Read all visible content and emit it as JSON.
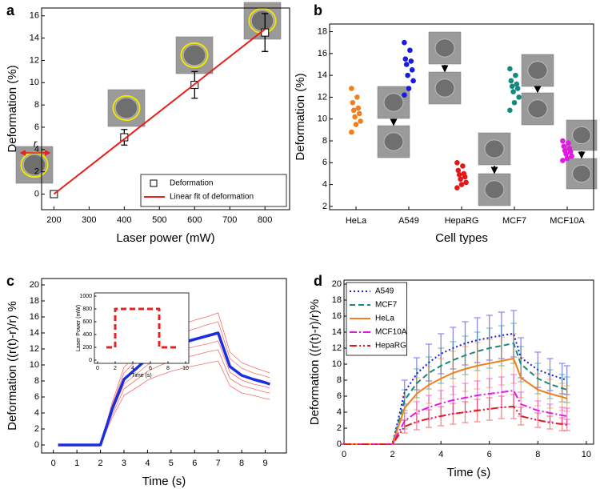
{
  "chart_data": [
    {
      "type": "scatter",
      "panel_label": "a",
      "x_label": "Laser power (mW)",
      "y_label": "Deformation (%)",
      "xlim": [
        165,
        870
      ],
      "ylim": [
        -1.4,
        16.7
      ],
      "xticks": [
        200,
        300,
        400,
        500,
        600,
        700,
        800
      ],
      "yticks": [
        0,
        2,
        4,
        6,
        8,
        10,
        12,
        14,
        16
      ],
      "legend": "lower right",
      "annotation": "r",
      "series": [
        {
          "name": "Deformation",
          "color": "#000000",
          "marker": "square",
          "x": [
            200,
            400,
            600,
            800
          ],
          "values": [
            0,
            5.1,
            9.8,
            14.5
          ],
          "errors": [
            0,
            0.7,
            1.2,
            1.7
          ]
        },
        {
          "name": "Linear fit of deformation",
          "color": "#e8201c",
          "x": [
            200,
            800
          ],
          "values": [
            0,
            14.8
          ]
        }
      ]
    },
    {
      "type": "strip",
      "panel_label": "b",
      "x_label": "Cell types",
      "y_label": "Deformation (%)",
      "categories": [
        "HeLa",
        "A549",
        "HepaRG",
        "MCF7",
        "MCF10A"
      ],
      "ylim": [
        1.7,
        18.7
      ],
      "yticks": [
        2,
        4,
        6,
        8,
        10,
        12,
        14,
        16,
        18
      ],
      "series": [
        {
          "color": "#f07f20",
          "values": [
            12.8,
            12.0,
            11.5,
            11.0,
            10.8,
            10.5,
            10.2,
            9.8,
            9.5,
            8.8
          ]
        },
        {
          "color": "#1a1adc",
          "values": [
            17.0,
            16.3,
            15.5,
            15.3,
            15.0,
            14.5,
            14.0,
            13.5,
            12.8,
            12.2
          ]
        },
        {
          "color": "#e01a1a",
          "values": [
            6.0,
            5.7,
            5.3,
            5.0,
            4.9,
            4.7,
            4.5,
            4.2,
            4.0,
            3.7
          ]
        },
        {
          "color": "#138a80",
          "values": [
            14.6,
            14.0,
            13.5,
            13.2,
            13.0,
            12.8,
            12.5,
            12.0,
            11.5,
            10.8
          ]
        },
        {
          "color": "#e01ae0",
          "values": [
            8.0,
            7.8,
            7.5,
            7.3,
            7.1,
            7.0,
            6.8,
            6.6,
            6.4,
            6.2
          ]
        }
      ]
    },
    {
      "type": "line",
      "panel_label": "c",
      "x_label": "Time (s)",
      "y_label": "Deformation ((r(t)-r)/r) %",
      "x": [
        0.2,
        0.5,
        1,
        1.5,
        2,
        2.5,
        3,
        3.5,
        4,
        4.5,
        5,
        5.5,
        6,
        6.5,
        7,
        7.5,
        8,
        8.5,
        9,
        9.2
      ],
      "xlim": [
        -0.5,
        9.9
      ],
      "ylim": [
        -1,
        20.8
      ],
      "xticks": [
        0,
        1,
        2,
        3,
        4,
        5,
        6,
        7,
        8,
        9
      ],
      "yticks": [
        0,
        2,
        4,
        6,
        8,
        10,
        12,
        14,
        16,
        18,
        20
      ],
      "series": [
        {
          "color": "#f07070",
          "width": 0.8,
          "values": [
            0,
            0,
            0,
            0,
            0,
            5.3,
            9.7,
            11.2,
            12.7,
            13.7,
            14.5,
            15.1,
            15.6,
            16.0,
            16.5,
            11.6,
            10.3,
            9.7,
            9.2,
            9.0
          ]
        },
        {
          "color": "#f07070",
          "width": 0.8,
          "values": [
            0,
            0,
            0,
            0,
            0,
            5.0,
            9.0,
            10.5,
            11.9,
            12.8,
            13.5,
            14.1,
            14.5,
            15.0,
            15.4,
            10.8,
            9.6,
            9.0,
            8.6,
            8.4
          ]
        },
        {
          "color": "#f07070",
          "width": 0.8,
          "values": [
            0,
            0,
            0,
            0,
            0,
            4.2,
            7.6,
            8.8,
            10.0,
            10.8,
            11.4,
            11.9,
            12.3,
            12.6,
            13.0,
            9.1,
            8.1,
            7.6,
            7.3,
            7.1
          ]
        },
        {
          "color": "#f07070",
          "width": 0.8,
          "values": [
            0,
            0,
            0,
            0,
            0,
            3.8,
            7.0,
            8.1,
            9.2,
            9.9,
            10.5,
            10.9,
            11.2,
            11.6,
            11.9,
            8.3,
            7.4,
            7.0,
            6.6,
            6.5
          ]
        },
        {
          "color": "#f07070",
          "width": 0.8,
          "values": [
            0,
            0,
            0,
            0,
            0,
            3.4,
            6.2,
            7.1,
            8.1,
            8.7,
            9.2,
            9.6,
            9.9,
            10.2,
            10.5,
            7.4,
            6.5,
            6.2,
            5.8,
            5.7
          ]
        },
        {
          "color": "#1a2ee0",
          "width": 3.5,
          "values": [
            0,
            0,
            0,
            0,
            0,
            4.5,
            8.2,
            9.5,
            10.8,
            11.6,
            12.3,
            12.8,
            13.2,
            13.6,
            14.0,
            9.8,
            8.7,
            8.2,
            7.8,
            7.6
          ]
        }
      ],
      "inset": {
        "type": "line",
        "x_label": "Time (s)",
        "y_label": "Laser Power (mW)",
        "x": [
          1,
          2,
          2,
          7,
          7,
          9.2
        ],
        "xlim": [
          0,
          10
        ],
        "ylim": [
          0,
          1000
        ],
        "xticks": [
          0,
          2,
          4,
          6,
          8,
          10
        ],
        "yticks": [
          0,
          200,
          400,
          600,
          800,
          1000
        ],
        "series": [
          {
            "color": "#e8201c",
            "width": 3,
            "dash": "dashed",
            "values": [
              200,
              200,
              800,
              800,
              200,
              200
            ]
          }
        ]
      }
    },
    {
      "type": "line",
      "panel_label": "d",
      "x_label": "Time (s)",
      "y_label": "Deformation ((r(t)-r)/r)%",
      "x": [
        0,
        2,
        2.5,
        3,
        3.5,
        4,
        4.5,
        5,
        5.5,
        6,
        6.5,
        7,
        7.3,
        8,
        8.5,
        9,
        9.2
      ],
      "xlim": [
        0,
        10.3
      ],
      "ylim": [
        0,
        20.5
      ],
      "xticks": [
        0,
        2,
        4,
        6,
        8,
        10
      ],
      "yticks": [
        0,
        2,
        4,
        6,
        8,
        10,
        12,
        14,
        16,
        18,
        20
      ],
      "legend": "upper left",
      "series": [
        {
          "name": "A549",
          "color": "#1a1adc",
          "dash": "dotted",
          "width": 2,
          "values": [
            0,
            0,
            6.5,
            8.8,
            10.2,
            11.3,
            12.0,
            12.6,
            13.0,
            13.3,
            13.6,
            13.8,
            10.8,
            9.3,
            8.7,
            8.2,
            8.0
          ],
          "errors": [
            0,
            0,
            1.5,
            2.0,
            2.3,
            2.5,
            2.6,
            2.7,
            2.8,
            2.8,
            2.9,
            2.9,
            2.5,
            2.2,
            2.0,
            1.9,
            1.8
          ]
        },
        {
          "name": "MCF7",
          "color": "#138a80",
          "dash": "dashed",
          "width": 2,
          "values": [
            0,
            0,
            5.5,
            7.6,
            8.9,
            9.8,
            10.5,
            11.1,
            11.6,
            12.0,
            12.3,
            12.6,
            10.0,
            8.2,
            7.5,
            7.0,
            6.8
          ],
          "errors": [
            0,
            0,
            1.3,
            1.8,
            2.0,
            2.2,
            2.3,
            2.4,
            2.4,
            2.5,
            2.5,
            2.5,
            2.2,
            1.9,
            1.8,
            1.7,
            1.6
          ]
        },
        {
          "name": "HeLa",
          "color": "#f07f20",
          "dash": "solid",
          "width": 2,
          "values": [
            0,
            0,
            4.5,
            6.3,
            7.4,
            8.2,
            8.9,
            9.4,
            9.8,
            10.1,
            10.4,
            10.7,
            8.3,
            6.8,
            6.3,
            5.9,
            5.7
          ],
          "errors": [
            0,
            0,
            1.5,
            2.0,
            2.3,
            2.5,
            2.7,
            2.8,
            2.9,
            3.0,
            3.0,
            3.1,
            2.5,
            2.0,
            1.8,
            1.7,
            1.6
          ]
        },
        {
          "name": "MCF10A",
          "color": "#e01ae0",
          "dash": "dash-dot",
          "width": 2,
          "values": [
            0,
            0,
            2.9,
            4.0,
            4.6,
            5.1,
            5.5,
            5.8,
            6.1,
            6.3,
            6.5,
            6.7,
            5.0,
            4.2,
            3.9,
            3.6,
            3.5
          ],
          "errors": [
            0,
            0,
            1.0,
            1.3,
            1.5,
            1.6,
            1.7,
            1.8,
            1.8,
            1.9,
            1.9,
            2.0,
            1.5,
            1.2,
            1.1,
            1.0,
            1.0
          ]
        },
        {
          "name": "HepaRG",
          "color": "#e01a1a",
          "dash": "dash-dot-dot",
          "width": 2,
          "values": [
            0,
            0,
            2.2,
            2.8,
            3.2,
            3.5,
            3.8,
            4.0,
            4.2,
            4.4,
            4.6,
            4.7,
            3.5,
            3.0,
            2.7,
            2.5,
            2.4
          ],
          "errors": [
            0,
            0,
            0.8,
            1.0,
            1.1,
            1.2,
            1.3,
            1.3,
            1.4,
            1.4,
            1.4,
            1.5,
            1.1,
            0.9,
            0.8,
            0.8,
            0.7
          ]
        }
      ]
    }
  ]
}
